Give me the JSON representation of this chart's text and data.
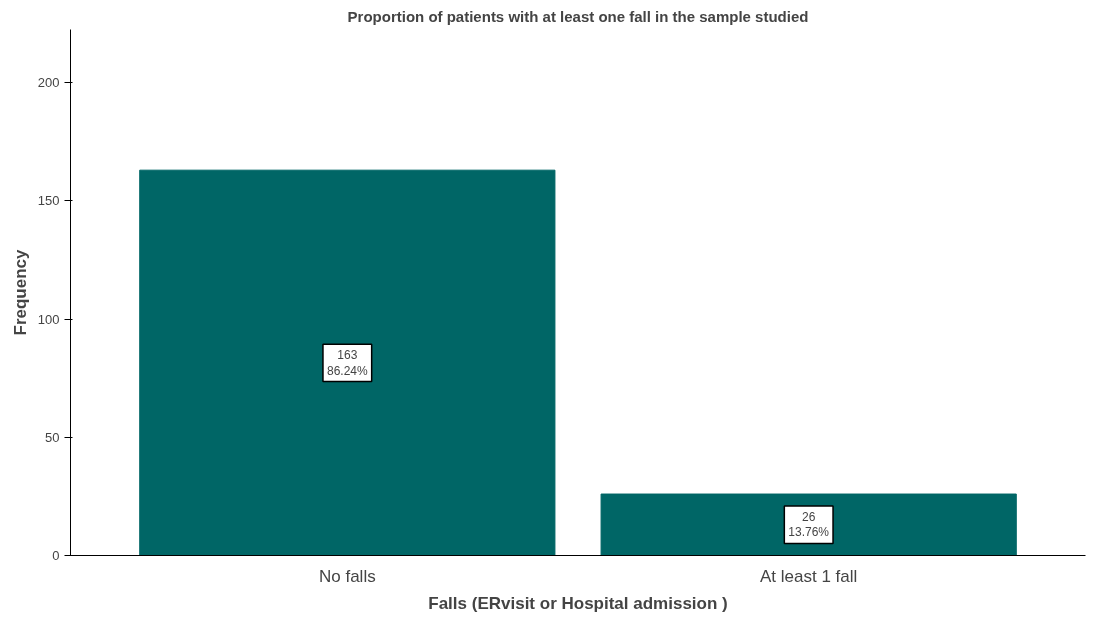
{
  "chart_data": {
    "type": "bar",
    "title": "Proportion of patients with at least one fall in the sample studied",
    "xlabel": "Falls (ERvisit or Hospital admission )",
    "ylabel": "Frequency",
    "categories": [
      "No falls",
      "At least 1 fall"
    ],
    "values": [
      163,
      26
    ],
    "color": "#006666",
    "value_labels": [
      "163\n86.24%",
      "26\n13.76%"
    ],
    "ylim": [
      0,
      222.5
    ],
    "yticks": [
      0,
      50,
      100,
      150,
      200
    ],
    "grid": false
  }
}
